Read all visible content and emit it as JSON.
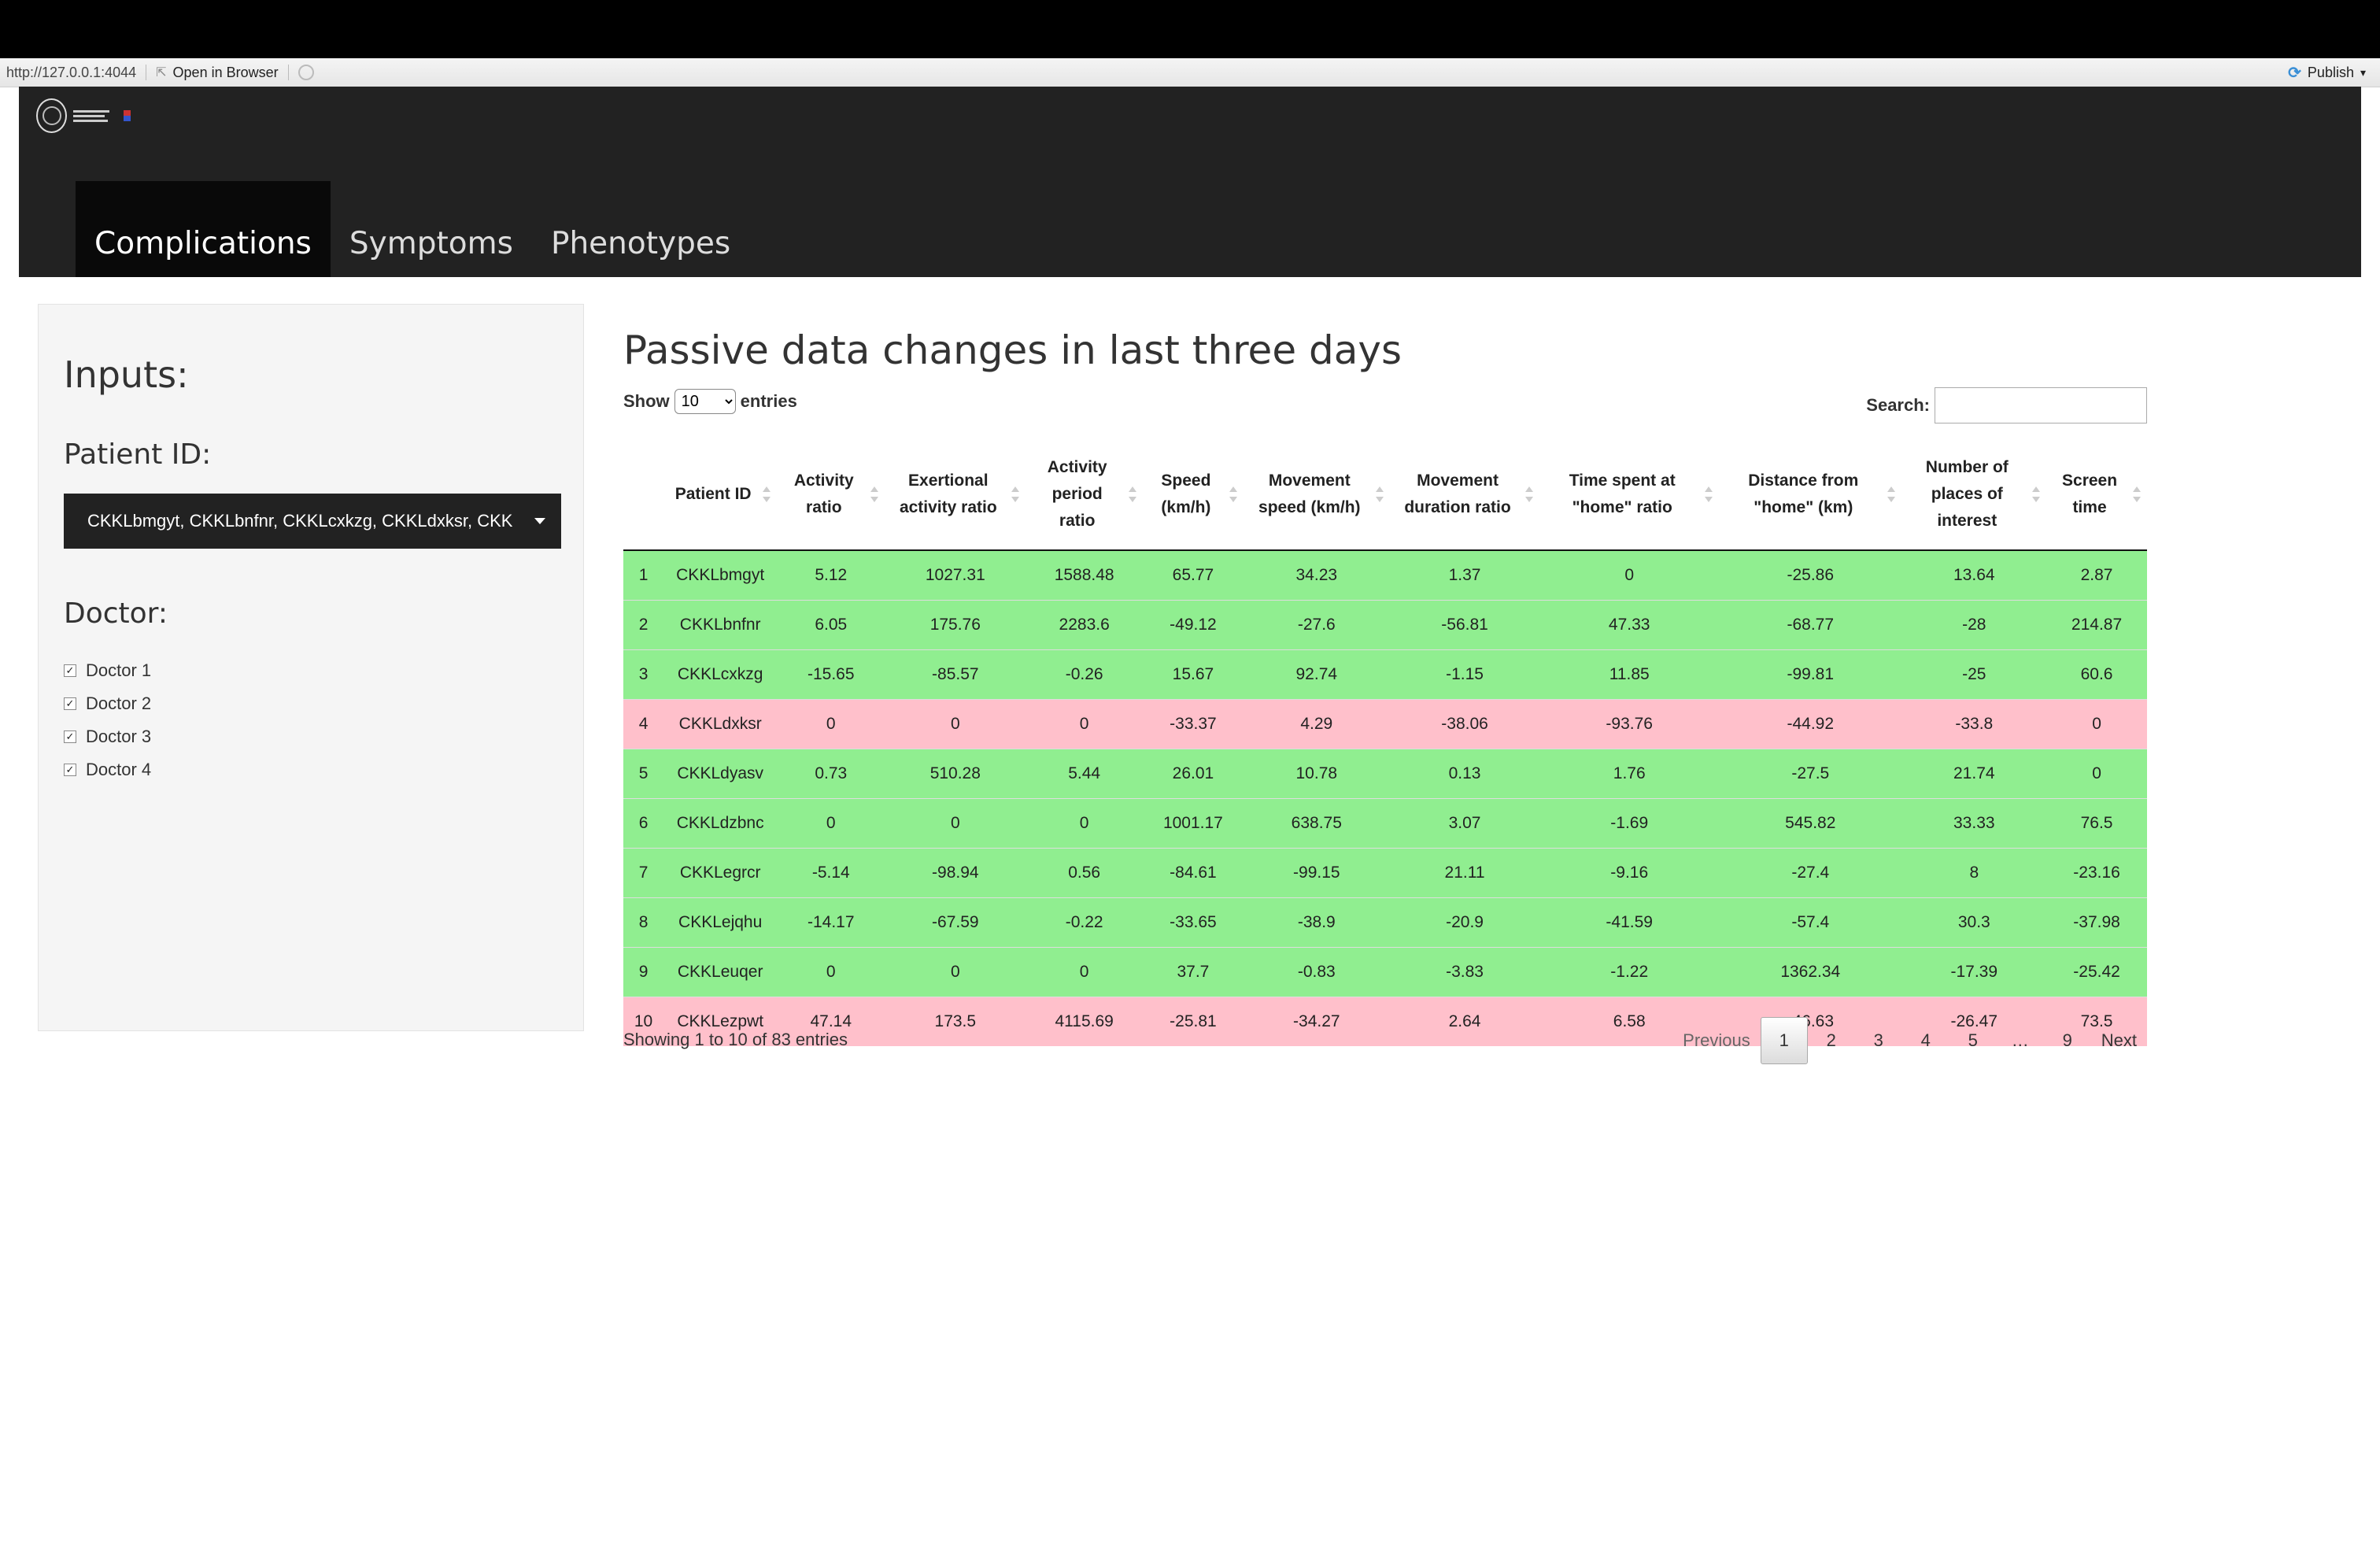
{
  "browser_bar": {
    "url": "http://127.0.0.1:4044",
    "open_in_browser": "Open in Browser",
    "publish": "Publish"
  },
  "navbar": {
    "tabs": [
      {
        "label": "Complications",
        "active": true
      },
      {
        "label": "Symptoms",
        "active": false
      },
      {
        "label": "Phenotypes",
        "active": false
      }
    ]
  },
  "sidebar": {
    "title": "Inputs:",
    "patient_label": "Patient ID:",
    "patient_selected": "CKKLbmgyt, CKKLbnfnr, CKKLcxkzg, CKKLdxksr, CKKLdyasv",
    "doctor_label": "Doctor:",
    "doctors": [
      {
        "label": "Doctor 1",
        "checked": true
      },
      {
        "label": "Doctor 2",
        "checked": true
      },
      {
        "label": "Doctor 3",
        "checked": true
      },
      {
        "label": "Doctor 4",
        "checked": true
      }
    ]
  },
  "main": {
    "title": "Passive data changes in last three days",
    "show_label": "Show",
    "entries_label": "entries",
    "page_size": "10",
    "search_label": "Search:",
    "search_value": "",
    "info": "Showing 1 to 10 of 83 entries",
    "pagination": {
      "previous": "Previous",
      "next": "Next",
      "pages": [
        "1",
        "2",
        "3",
        "4",
        "5",
        "…",
        "9"
      ],
      "current": "1"
    }
  },
  "table": {
    "columns": [
      "",
      "Patient ID",
      "Activity ratio",
      "Exertional activity ratio",
      "Activity period ratio",
      "Speed (km/h)",
      "Movement speed (km/h)",
      "Movement duration ratio",
      "Time spent at \"home\" ratio",
      "Distance from \"home\" (km)",
      "Number of places of interest",
      "Screen time"
    ],
    "rows": [
      {
        "status": "green",
        "cells": [
          "1",
          "CKKLbmgyt",
          "5.12",
          "1027.31",
          "1588.48",
          "65.77",
          "34.23",
          "1.37",
          "0",
          "-25.86",
          "13.64",
          "2.87"
        ]
      },
      {
        "status": "green",
        "cells": [
          "2",
          "CKKLbnfnr",
          "6.05",
          "175.76",
          "2283.6",
          "-49.12",
          "-27.6",
          "-56.81",
          "47.33",
          "-68.77",
          "-28",
          "214.87"
        ]
      },
      {
        "status": "green",
        "cells": [
          "3",
          "CKKLcxkzg",
          "-15.65",
          "-85.57",
          "-0.26",
          "15.67",
          "92.74",
          "-1.15",
          "11.85",
          "-99.81",
          "-25",
          "60.6"
        ]
      },
      {
        "status": "pink",
        "cells": [
          "4",
          "CKKLdxksr",
          "0",
          "0",
          "0",
          "-33.37",
          "4.29",
          "-38.06",
          "-93.76",
          "-44.92",
          "-33.8",
          "0"
        ]
      },
      {
        "status": "green",
        "cells": [
          "5",
          "CKKLdyasv",
          "0.73",
          "510.28",
          "5.44",
          "26.01",
          "10.78",
          "0.13",
          "1.76",
          "-27.5",
          "21.74",
          "0"
        ]
      },
      {
        "status": "green",
        "cells": [
          "6",
          "CKKLdzbnc",
          "0",
          "0",
          "0",
          "1001.17",
          "638.75",
          "3.07",
          "-1.69",
          "545.82",
          "33.33",
          "76.5"
        ]
      },
      {
        "status": "green",
        "cells": [
          "7",
          "CKKLegrcr",
          "-5.14",
          "-98.94",
          "0.56",
          "-84.61",
          "-99.15",
          "21.11",
          "-9.16",
          "-27.4",
          "8",
          "-23.16"
        ]
      },
      {
        "status": "green",
        "cells": [
          "8",
          "CKKLejqhu",
          "-14.17",
          "-67.59",
          "-0.22",
          "-33.65",
          "-38.9",
          "-20.9",
          "-41.59",
          "-57.4",
          "30.3",
          "-37.98"
        ]
      },
      {
        "status": "green",
        "cells": [
          "9",
          "CKKLeuqer",
          "0",
          "0",
          "0",
          "37.7",
          "-0.83",
          "-3.83",
          "-1.22",
          "1362.34",
          "-17.39",
          "-25.42"
        ]
      },
      {
        "status": "pink",
        "cells": [
          "10",
          "CKKLezpwt",
          "47.14",
          "173.5",
          "4115.69",
          "-25.81",
          "-34.27",
          "2.64",
          "6.58",
          "-46.63",
          "-26.47",
          "73.5"
        ]
      }
    ]
  },
  "colors": {
    "row_green": "#90ee90",
    "row_pink": "#ffc0cb",
    "navbar": "#222222"
  }
}
